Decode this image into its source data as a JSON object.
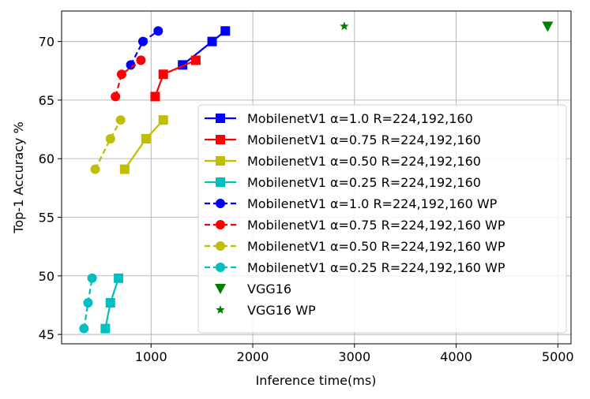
{
  "chart_data": {
    "type": "line",
    "title": "",
    "xlabel": "Inference time(ms)",
    "ylabel": "Top-1 Accuracy %",
    "xlim": [
      120,
      5130
    ],
    "ylim": [
      44.2,
      72.6
    ],
    "xticks": [
      1000,
      2000,
      3000,
      4000,
      5000
    ],
    "yticks": [
      45,
      50,
      55,
      60,
      65,
      70
    ],
    "grid": true,
    "legend_position": "center-right",
    "series": [
      {
        "name": "MobilenetV1 α=1.0 R=224,192,160",
        "color": "#0000ff",
        "marker": "square",
        "line": "solid",
        "x": [
          1310,
          1600,
          1730
        ],
        "y": [
          68.0,
          70.0,
          70.9
        ]
      },
      {
        "name": "MobilenetV1 α=0.75 R=224,192,160",
        "color": "#ff0000",
        "marker": "square",
        "line": "solid",
        "x": [
          1040,
          1120,
          1440
        ],
        "y": [
          65.3,
          67.2,
          68.4
        ]
      },
      {
        "name": "MobilenetV1 α=0.50 R=224,192,160",
        "color": "#bfbf00",
        "marker": "square",
        "line": "solid",
        "x": [
          740,
          950,
          1120
        ],
        "y": [
          59.1,
          61.7,
          63.3
        ]
      },
      {
        "name": "MobilenetV1 α=0.25 R=224,192,160",
        "color": "#00bfbf",
        "marker": "square",
        "line": "solid",
        "x": [
          550,
          600,
          680
        ],
        "y": [
          45.5,
          47.7,
          49.8
        ]
      },
      {
        "name": "MobilenetV1 α=1.0 R=224,192,160 WP",
        "color": "#0000ff",
        "marker": "circle",
        "line": "dashed",
        "x": [
          800,
          920,
          1070
        ],
        "y": [
          68.0,
          70.0,
          70.9
        ]
      },
      {
        "name": "MobilenetV1 α=0.75 R=224,192,160 WP",
        "color": "#ff0000",
        "marker": "circle",
        "line": "dashed",
        "x": [
          650,
          710,
          900
        ],
        "y": [
          65.3,
          67.2,
          68.4
        ]
      },
      {
        "name": "MobilenetV1 α=0.50 R=224,192,160 WP",
        "color": "#bfbf00",
        "marker": "circle",
        "line": "dashed",
        "x": [
          450,
          600,
          700
        ],
        "y": [
          59.1,
          61.7,
          63.3
        ]
      },
      {
        "name": "MobilenetV1 α=0.25 R=224,192,160 WP",
        "color": "#00bfbf",
        "marker": "circle",
        "line": "dashed",
        "x": [
          340,
          380,
          420
        ],
        "y": [
          45.5,
          47.7,
          49.8
        ]
      },
      {
        "name": "VGG16",
        "color": "#008000",
        "marker": "triangle-down",
        "line": "none",
        "x": [
          4900
        ],
        "y": [
          71.3
        ]
      },
      {
        "name": "VGG16 WP",
        "color": "#008000",
        "marker": "star",
        "line": "none",
        "x": [
          2900
        ],
        "y": [
          71.3
        ]
      }
    ]
  }
}
